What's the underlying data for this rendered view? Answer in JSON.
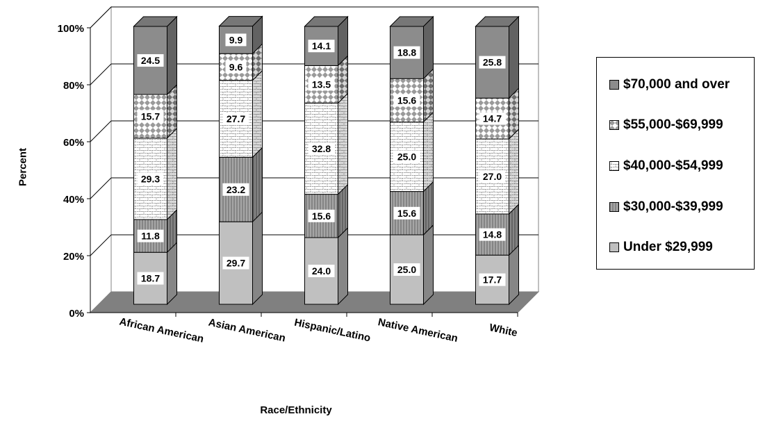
{
  "chart_data": {
    "type": "bar",
    "stacked": true,
    "three_d": true,
    "title": "",
    "xlabel": "Race/Ethnicity",
    "ylabel": "Percent",
    "ylim": [
      0,
      100
    ],
    "yticks": [
      "0%",
      "20%",
      "40%",
      "60%",
      "80%",
      "100%"
    ],
    "grid": true,
    "legend_position": "right",
    "categories": [
      "African American",
      "Asian American",
      "Hispanic/Latino",
      "Native American",
      "White"
    ],
    "series": [
      {
        "name": "Under $29,999",
        "values": [
          18.7,
          29.7,
          24.0,
          25.0,
          17.7
        ],
        "color": "#c0c0c0",
        "pattern": "solid"
      },
      {
        "name": "$30,000-$39,999",
        "values": [
          11.8,
          23.2,
          15.6,
          15.6,
          14.8
        ],
        "color": "#a6a6a6",
        "pattern": "vertical-lines"
      },
      {
        "name": "$40,000-$54,999",
        "values": [
          29.3,
          27.7,
          32.8,
          25.0,
          27.0
        ],
        "color": "#ffffff",
        "pattern": "brick"
      },
      {
        "name": "$55,000-$69,999",
        "values": [
          15.7,
          9.6,
          13.5,
          15.6,
          14.7
        ],
        "color": "#ffffff",
        "pattern": "diamonds"
      },
      {
        "name": "$70,000 and over",
        "values": [
          24.5,
          9.9,
          14.1,
          18.8,
          25.8
        ],
        "color": "#8c8c8c",
        "pattern": "solid"
      }
    ],
    "data_labels": [
      [
        "18.7",
        "29.7",
        "24.0",
        "25.0",
        "17.7"
      ],
      [
        "11.8",
        "23.2",
        "15.6",
        "15.6",
        "14.8"
      ],
      [
        "29.3",
        "27.7",
        "32.8",
        "25.0",
        "27.0"
      ],
      [
        "15.7",
        "9.6",
        "13.5",
        "15.6",
        "14.7"
      ],
      [
        "24.5",
        "9.9",
        "14.1",
        "18.8",
        "25.8"
      ]
    ]
  },
  "legend": {
    "items": [
      "$70,000 and over",
      "$55,000-$69,999",
      "$40,000-$54,999",
      "$30,000-$39,999",
      "Under $29,999"
    ]
  }
}
